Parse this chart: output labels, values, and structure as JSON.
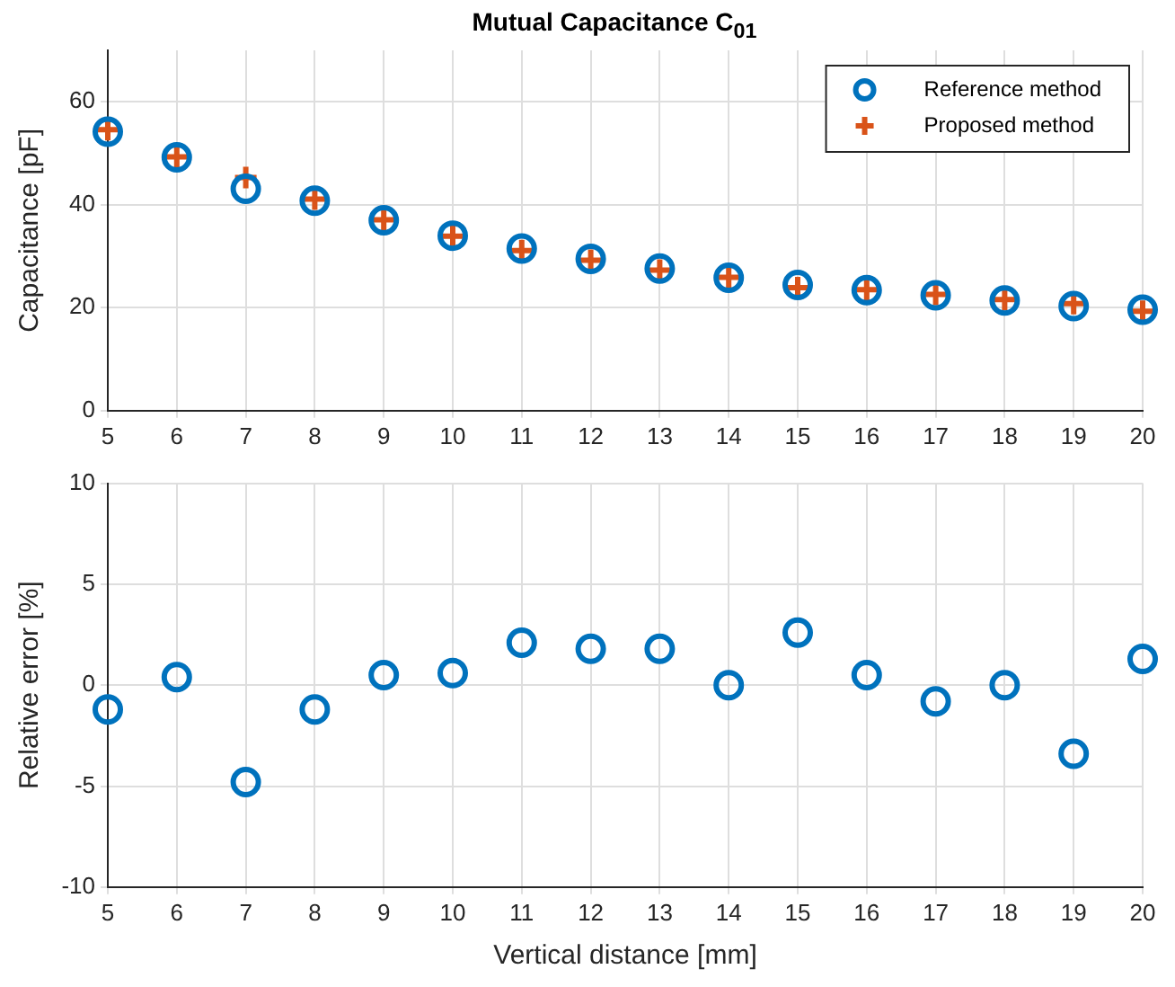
{
  "chart_data": [
    {
      "type": "scatter",
      "title": "Mutual Capacitance C$_{01}$",
      "ylabel": "Capacitance [pF]",
      "x": [
        5,
        6,
        7,
        8,
        9,
        10,
        11,
        12,
        13,
        14,
        15,
        16,
        17,
        18,
        19,
        20
      ],
      "xlim": [
        5,
        20
      ],
      "xticks": [
        5,
        6,
        7,
        8,
        9,
        10,
        11,
        12,
        13,
        14,
        15,
        16,
        17,
        18,
        19,
        20
      ],
      "ylim": [
        0,
        70
      ],
      "yticks": [
        0,
        20,
        40,
        60
      ],
      "grid": true,
      "legend": "top right",
      "series": [
        {
          "name": "Reference method",
          "color": "#0072bd",
          "marker": "circle",
          "values": [
            54.2,
            49.2,
            43.1,
            40.8,
            37,
            34,
            31.5,
            29.5,
            27.6,
            25.8,
            24.4,
            23.4,
            22.4,
            21.4,
            20.3,
            19.6
          ]
        },
        {
          "name": "Proposed method",
          "color": "#d95319",
          "marker": "cross",
          "values": [
            54.6,
            49.3,
            45.3,
            41.1,
            37.1,
            33.9,
            31.1,
            29.2,
            27.3,
            25.9,
            23.9,
            23.5,
            22.6,
            21.6,
            20.8,
            19.3
          ]
        }
      ]
    },
    {
      "type": "scatter",
      "xlabel": "Vertical distance [mm]",
      "ylabel": "Relative error [%]",
      "x": [
        5,
        6,
        7,
        8,
        9,
        10,
        11,
        12,
        13,
        14,
        15,
        16,
        17,
        18,
        19,
        20
      ],
      "xlim": [
        5,
        20
      ],
      "xticks": [
        5,
        6,
        7,
        8,
        9,
        10,
        11,
        12,
        13,
        14,
        15,
        16,
        17,
        18,
        19,
        20
      ],
      "ylim": [
        -10,
        10
      ],
      "yticks": [
        -10,
        -5,
        0,
        5,
        10
      ],
      "grid": true,
      "series": [
        {
          "color": "#0072bd",
          "marker": "circle",
          "values": [
            -1.2,
            0.4,
            -4.8,
            -1.2,
            0.5,
            0.6,
            2.1,
            1.8,
            1.8,
            0,
            2.6,
            0.5,
            -0.8,
            0,
            -3.4,
            1.3
          ]
        }
      ]
    }
  ]
}
